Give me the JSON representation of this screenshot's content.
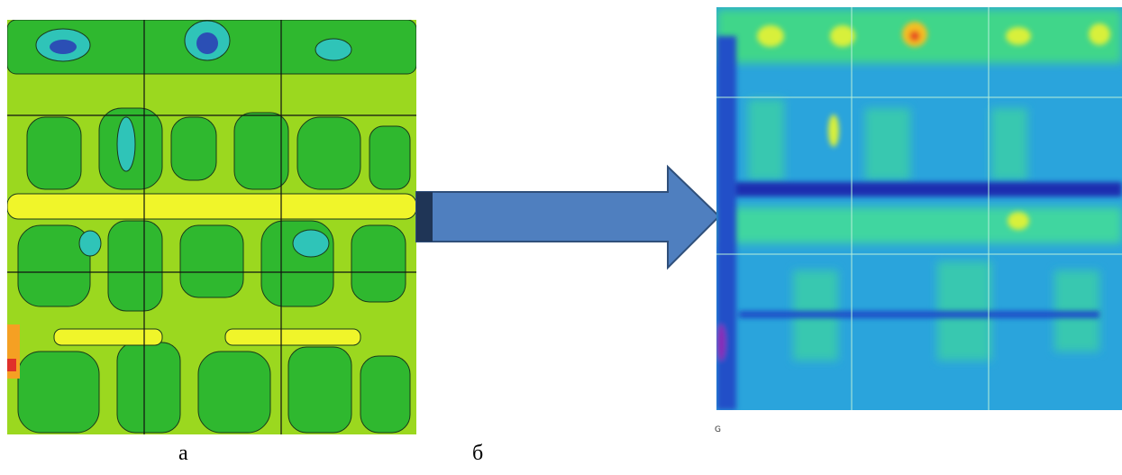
{
  "figure": {
    "label_a": "а",
    "label_b": "б",
    "corner_mark": "G"
  }
}
